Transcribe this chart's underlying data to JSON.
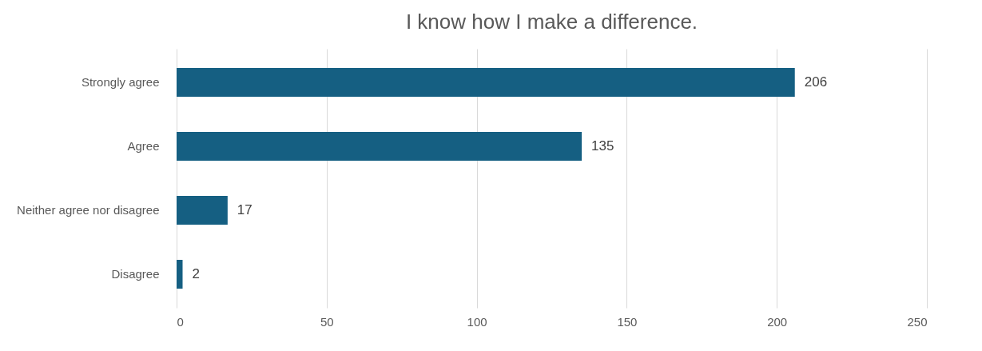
{
  "chart_data": {
    "type": "bar",
    "orientation": "horizontal",
    "title": "I know how I make a difference.",
    "categories": [
      "Strongly agree",
      "Agree",
      "Neither agree nor disagree",
      "Disagree"
    ],
    "values": [
      206,
      135,
      17,
      2
    ],
    "color": "#155f82",
    "xlim": [
      0,
      250
    ],
    "xticks": [
      0,
      50,
      100,
      150,
      200,
      250
    ],
    "grid": "x",
    "data_labels": true
  }
}
